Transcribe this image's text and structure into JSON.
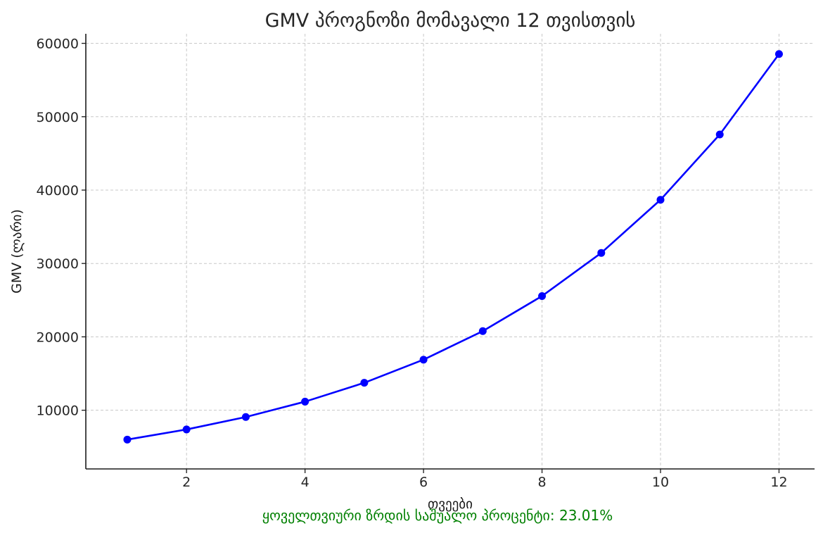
{
  "chart_data": {
    "type": "line",
    "title": "GMV პროგნოზი მომავალი 12 თვისთვის",
    "xlabel": "თვეები",
    "ylabel": "GMV (ლარი)",
    "x": [
      1,
      2,
      3,
      4,
      5,
      6,
      7,
      8,
      9,
      10,
      11,
      12
    ],
    "series": [
      {
        "name": "",
        "values": [
          6000,
          7380,
          9080,
          11170,
          13740,
          16890,
          20780,
          25560,
          31440,
          38680,
          47580,
          58540
        ],
        "color": "#0000ff",
        "marker": "circle"
      }
    ],
    "xlim": [
      0.3,
      12.6
    ],
    "ylim": [
      2000,
      61300
    ],
    "xticks": [
      2,
      4,
      6,
      8,
      10,
      12
    ],
    "yticks": [
      10000,
      20000,
      30000,
      40000,
      50000,
      60000
    ],
    "grid": true,
    "annotation": {
      "text": "ყოველთვიური ზრდის საშუალო პროცენტი: 23.01%",
      "color": "#008000"
    }
  }
}
